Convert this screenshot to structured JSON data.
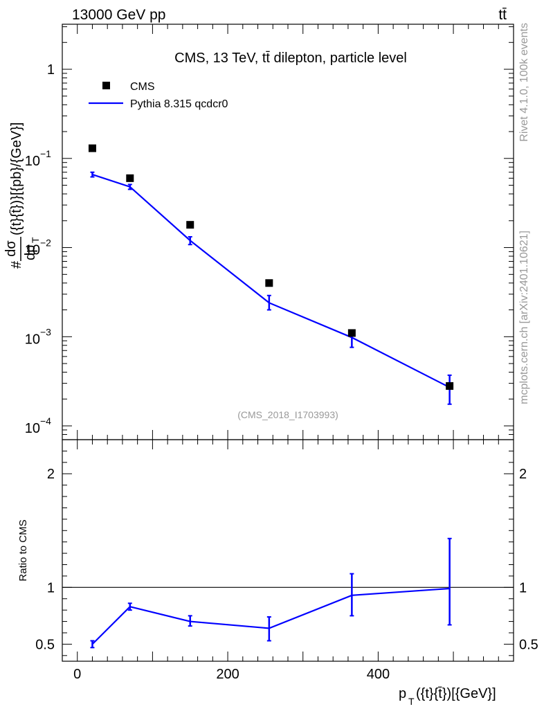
{
  "header": {
    "left": "13000 GeV pp",
    "right": "tt̄"
  },
  "side_labels": {
    "rivet": "Rivet 4.1.0,  100k events",
    "mcplots": "mcplots.cern.ch [arXiv:2401.10621]"
  },
  "chart_data": [
    {
      "type": "line",
      "panel": "main",
      "title": "CMS, 13 TeV, tt̄ dilepton, particle level",
      "ylabel_prefix": "#",
      "ylabel_frac_num": "dσ",
      "ylabel_frac_den": "dp",
      "ylabel_den_sub": "T",
      "ylabel_tail": "({t}{t̄})}[{pb}/{GeV}]",
      "yscale": "log",
      "ylim": [
        7e-05,
        3.2
      ],
      "xlim": [
        -20,
        580
      ],
      "y_tick_labels": [
        {
          "value": 1,
          "base": "1",
          "exp": ""
        },
        {
          "value": 0.1,
          "base": "10",
          "exp": "−1"
        },
        {
          "value": 0.01,
          "base": "10",
          "exp": "−2"
        },
        {
          "value": 0.001,
          "base": "10",
          "exp": "−3"
        },
        {
          "value": 0.0001,
          "base": "10",
          "exp": "−4"
        }
      ],
      "analysis_id": "(CMS_2018_I1703993)",
      "legend": {
        "placement": "top-left",
        "entries": [
          "CMS",
          "Pythia 8.315 qcdcr0"
        ]
      },
      "series": [
        {
          "name": "CMS",
          "style": "markers",
          "color": "#000000",
          "x": [
            20,
            70,
            150,
            255,
            365,
            495
          ],
          "y": [
            0.13,
            0.06,
            0.018,
            0.004,
            0.0011,
            0.00028
          ]
        },
        {
          "name": "Pythia 8.315 qcdcr0",
          "style": "line",
          "color": "#0000ff",
          "x": [
            20,
            70,
            150,
            255,
            365,
            495
          ],
          "y": [
            0.066,
            0.048,
            0.012,
            0.0024,
            0.00098,
            0.00027
          ],
          "y_err_low": [
            0.062,
            0.045,
            0.0108,
            0.002,
            0.00076,
            0.000175
          ],
          "y_err_high": [
            0.07,
            0.051,
            0.0132,
            0.0029,
            0.00118,
            0.00037
          ]
        }
      ]
    },
    {
      "type": "line",
      "panel": "ratio",
      "ylabel": "Ratio to CMS",
      "xlabel": "p",
      "xlabel_sub": "T",
      "xlabel_tail": "({t}{t̄})[{GeV}]",
      "ylim": [
        0.35,
        2.3
      ],
      "xlim": [
        -20,
        580
      ],
      "y_ticks": [
        0.5,
        1,
        2
      ],
      "y_tick_labels": [
        "0.5",
        "1",
        "2"
      ],
      "x_ticks": [
        0,
        200,
        400
      ],
      "x_tick_labels": [
        "0",
        "200",
        "400"
      ],
      "reference": 1,
      "series": [
        {
          "name": "Pythia 8.315 qcdcr0",
          "color": "#0000ff",
          "x": [
            20,
            70,
            150,
            255,
            365,
            495
          ],
          "y": [
            0.5,
            0.83,
            0.7,
            0.64,
            0.93,
            0.99
          ],
          "y_err_low": [
            0.47,
            0.8,
            0.66,
            0.53,
            0.75,
            0.67
          ],
          "y_err_high": [
            0.53,
            0.86,
            0.75,
            0.74,
            1.12,
            1.43
          ]
        }
      ]
    }
  ]
}
